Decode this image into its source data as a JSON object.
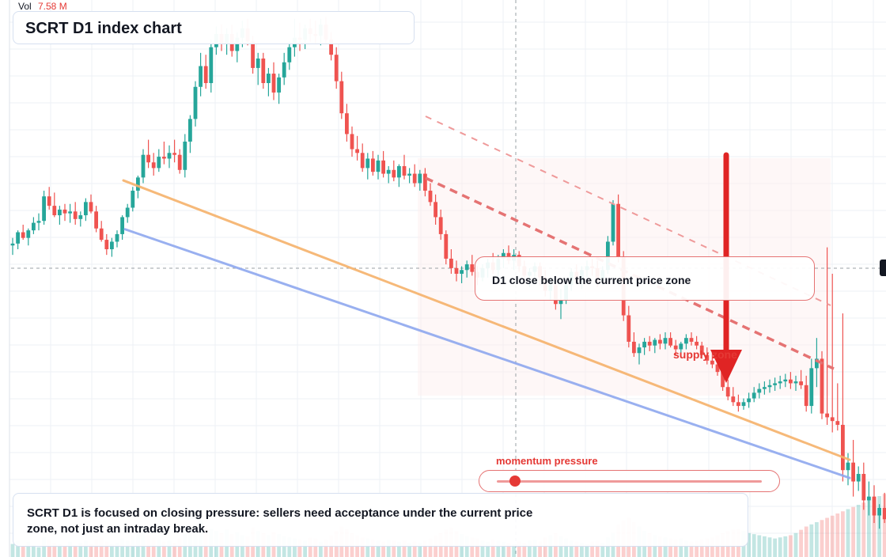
{
  "title": "SCRT D1 index chart",
  "volume": {
    "label": "Vol",
    "value": "7.58 M"
  },
  "callout": "D1 close below the current price zone",
  "supply_label": "supply zone",
  "momentum": {
    "label": "momentum pressure",
    "level": 0.07
  },
  "summary": "SCRT D1 is focused on closing pressure: sellers need acceptance under the current price zone, not just an intraday break.",
  "colors": {
    "up": "#26a69a",
    "down": "#ef5350",
    "accent": "#e53935",
    "trend_orange": "#f6b26b",
    "trend_blue": "#8fa8ef",
    "dashed_red": "#e57373"
  },
  "chart_data": {
    "type": "candlestick",
    "series": [
      {
        "name": "price",
        "candles": [
          [
            55,
            59,
            50,
            56
          ],
          [
            56,
            63,
            53,
            62
          ],
          [
            62,
            66,
            58,
            59
          ],
          [
            59,
            64,
            55,
            63
          ],
          [
            63,
            70,
            61,
            67
          ],
          [
            67,
            72,
            63,
            68
          ],
          [
            68,
            84,
            66,
            81
          ],
          [
            81,
            86,
            74,
            76
          ],
          [
            76,
            83,
            70,
            71
          ],
          [
            71,
            76,
            66,
            74
          ],
          [
            74,
            77,
            68,
            72
          ],
          [
            72,
            77,
            67,
            73
          ],
          [
            73,
            78,
            66,
            69
          ],
          [
            69,
            73,
            65,
            71
          ],
          [
            71,
            80,
            68,
            78
          ],
          [
            78,
            82,
            72,
            73
          ],
          [
            73,
            76,
            62,
            64
          ],
          [
            64,
            68,
            57,
            58
          ],
          [
            58,
            61,
            50,
            53
          ],
          [
            53,
            59,
            49,
            57
          ],
          [
            57,
            63,
            54,
            61
          ],
          [
            61,
            71,
            58,
            70
          ],
          [
            70,
            77,
            67,
            75
          ],
          [
            75,
            86,
            73,
            84
          ],
          [
            84,
            92,
            80,
            91
          ],
          [
            91,
            106,
            88,
            103
          ],
          [
            103,
            111,
            96,
            99
          ],
          [
            99,
            104,
            92,
            96
          ],
          [
            96,
            106,
            94,
            102
          ],
          [
            102,
            110,
            98,
            101
          ],
          [
            101,
            108,
            96,
            104
          ],
          [
            104,
            111,
            99,
            103
          ],
          [
            103,
            106,
            93,
            95
          ],
          [
            95,
            114,
            91,
            110
          ],
          [
            110,
            124,
            104,
            122
          ],
          [
            122,
            142,
            118,
            139
          ],
          [
            139,
            157,
            134,
            150
          ],
          [
            150,
            156,
            138,
            141
          ],
          [
            141,
            164,
            136,
            160
          ],
          [
            160,
            171,
            156,
            167
          ],
          [
            167,
            172,
            158,
            162
          ],
          [
            162,
            170,
            156,
            167
          ],
          [
            167,
            172,
            155,
            158
          ],
          [
            158,
            168,
            152,
            165
          ],
          [
            165,
            174,
            160,
            170
          ],
          [
            170,
            175,
            161,
            163
          ],
          [
            163,
            166,
            146,
            149
          ],
          [
            149,
            157,
            140,
            154
          ],
          [
            154,
            157,
            138,
            141
          ],
          [
            141,
            149,
            134,
            146
          ],
          [
            146,
            152,
            132,
            136
          ],
          [
            136,
            146,
            130,
            144
          ],
          [
            144,
            157,
            140,
            152
          ],
          [
            152,
            163,
            148,
            160
          ],
          [
            160,
            175,
            155,
            165
          ],
          [
            165,
            173,
            158,
            164
          ],
          [
            164,
            172,
            159,
            170
          ],
          [
            170,
            175,
            163,
            167
          ],
          [
            167,
            174,
            162,
            166
          ],
          [
            166,
            175,
            161,
            172
          ],
          [
            172,
            176,
            162,
            164
          ],
          [
            164,
            168,
            153,
            156
          ],
          [
            156,
            160,
            138,
            142
          ],
          [
            142,
            147,
            122,
            125
          ],
          [
            125,
            130,
            110,
            114
          ],
          [
            114,
            118,
            102,
            106
          ],
          [
            106,
            113,
            100,
            104
          ],
          [
            104,
            109,
            94,
            96
          ],
          [
            96,
            104,
            90,
            101
          ],
          [
            101,
            105,
            92,
            94
          ],
          [
            94,
            103,
            90,
            100
          ],
          [
            100,
            105,
            91,
            93
          ],
          [
            93,
            97,
            88,
            95
          ],
          [
            95,
            100,
            89,
            91
          ],
          [
            91,
            98,
            86,
            97
          ],
          [
            97,
            103,
            90,
            92
          ],
          [
            92,
            96,
            88,
            93
          ],
          [
            93,
            98,
            86,
            88
          ],
          [
            88,
            95,
            84,
            93
          ],
          [
            93,
            96,
            81,
            84
          ],
          [
            84,
            88,
            76,
            78
          ],
          [
            78,
            82,
            66,
            70
          ],
          [
            70,
            74,
            58,
            61
          ],
          [
            61,
            63,
            45,
            48
          ],
          [
            48,
            53,
            40,
            43
          ],
          [
            43,
            47,
            36,
            40
          ],
          [
            40,
            44,
            35,
            42
          ],
          [
            42,
            47,
            38,
            45
          ],
          [
            45,
            50,
            39,
            41
          ],
          [
            41,
            44,
            34,
            38
          ],
          [
            38,
            45,
            36,
            43
          ],
          [
            43,
            48,
            38,
            46
          ],
          [
            46,
            51,
            40,
            42
          ],
          [
            42,
            50,
            38,
            48
          ],
          [
            48,
            53,
            43,
            51
          ],
          [
            51,
            55,
            45,
            47
          ],
          [
            47,
            53,
            42,
            50
          ],
          [
            50,
            52,
            41,
            44
          ],
          [
            44,
            47,
            36,
            39
          ],
          [
            39,
            43,
            33,
            41
          ],
          [
            41,
            46,
            37,
            44
          ],
          [
            44,
            46,
            34,
            38
          ],
          [
            38,
            42,
            28,
            31
          ],
          [
            31,
            37,
            26,
            34
          ],
          [
            34,
            37,
            21,
            24
          ],
          [
            24,
            32,
            16,
            26
          ],
          [
            26,
            36,
            24,
            34
          ],
          [
            34,
            43,
            31,
            41
          ],
          [
            41,
            45,
            34,
            36
          ],
          [
            36,
            44,
            32,
            42
          ],
          [
            42,
            47,
            37,
            44
          ],
          [
            44,
            48,
            39,
            43
          ],
          [
            43,
            47,
            33,
            36
          ],
          [
            36,
            44,
            34,
            42
          ],
          [
            42,
            60,
            40,
            57
          ],
          [
            57,
            79,
            55,
            77
          ],
          [
            77,
            82,
            46,
            49
          ],
          [
            49,
            52,
            15,
            18
          ],
          [
            18,
            23,
            1,
            4
          ],
          [
            4,
            9,
            -4,
            -2
          ],
          [
            -2,
            3,
            -8,
            1
          ],
          [
            1,
            6,
            -3,
            4
          ],
          [
            4,
            7,
            -1,
            2
          ],
          [
            2,
            6,
            -2,
            5
          ],
          [
            5,
            8,
            0,
            3
          ],
          [
            3,
            9,
            0,
            6
          ],
          [
            6,
            9,
            1,
            2
          ],
          [
            2,
            5,
            -3,
            0
          ],
          [
            0,
            4,
            -4,
            3
          ],
          [
            3,
            8,
            0,
            6
          ],
          [
            6,
            9,
            2,
            4
          ],
          [
            4,
            7,
            0,
            2
          ],
          [
            2,
            4,
            -5,
            -3
          ],
          [
            -3,
            1,
            -8,
            -6
          ],
          [
            -6,
            -1,
            -10,
            -8
          ],
          [
            -8,
            -3,
            -14,
            -12
          ],
          [
            -12,
            -6,
            -22,
            -20
          ],
          [
            -20,
            -16,
            -27,
            -25
          ],
          [
            -25,
            -20,
            -30,
            -28
          ],
          [
            -28,
            -24,
            -33,
            -30
          ],
          [
            -30,
            -26,
            -32,
            -28
          ],
          [
            -28,
            -23,
            -31,
            -26
          ],
          [
            -26,
            -20,
            -28,
            -23
          ],
          [
            -23,
            -18,
            -26,
            -21
          ],
          [
            -21,
            -17,
            -24,
            -20
          ],
          [
            -20,
            -16,
            -23,
            -19
          ],
          [
            -19,
            -15,
            -22,
            -18
          ],
          [
            -18,
            -14,
            -21,
            -17
          ],
          [
            -17,
            -13,
            -20,
            -16
          ],
          [
            -16,
            -12,
            -21,
            -18
          ],
          [
            -18,
            -14,
            -22,
            -17
          ],
          [
            -17,
            -11,
            -21,
            -19
          ],
          [
            -19,
            -14,
            -33,
            -30
          ],
          [
            -30,
            -5,
            -34,
            -10
          ],
          [
            -10,
            6,
            -20,
            -5
          ],
          [
            -5,
            -1,
            -37,
            -34
          ],
          [
            -34,
            54,
            -40,
            -36
          ],
          [
            -36,
            40,
            -44,
            -38
          ],
          [
            -38,
            -18,
            -43,
            -40
          ],
          [
            -40,
            19,
            -70,
            -64
          ],
          [
            -64,
            -55,
            -72,
            -60
          ],
          [
            -60,
            -48,
            -78,
            -70
          ],
          [
            -70,
            -62,
            -75,
            -66
          ],
          [
            -66,
            -60,
            -85,
            -80
          ],
          [
            -80,
            -70,
            -88,
            -78
          ],
          [
            -78,
            -72,
            -92,
            -88
          ],
          [
            -88,
            -82,
            -95,
            -84
          ],
          [
            -84,
            -76,
            -92,
            -90
          ],
          [
            -90,
            -82,
            -94,
            -92
          ],
          [
            -92,
            -86,
            -96,
            -94
          ],
          [
            -94,
            -88,
            -98,
            -96
          ],
          [
            -96,
            -90,
            -100,
            -98
          ],
          [
            -98,
            -92,
            -102,
            -100
          ],
          [
            -100,
            -75,
            -104,
            -80
          ]
        ]
      }
    ],
    "volume": [
      12,
      15,
      10,
      14,
      11,
      9,
      18,
      16,
      13,
      12,
      10,
      14,
      11,
      13,
      15,
      12,
      16,
      18,
      14,
      12,
      13,
      17,
      15,
      19,
      22,
      28,
      20,
      18,
      16,
      14,
      15,
      13,
      17,
      21,
      26,
      30,
      34,
      29,
      26,
      24,
      22,
      25,
      21,
      23,
      20,
      19,
      27,
      24,
      22,
      20,
      23,
      21,
      19,
      18,
      17,
      16,
      15,
      18,
      17,
      14,
      16,
      20,
      24,
      28,
      26,
      22,
      20,
      18,
      17,
      16,
      15,
      14,
      16,
      15,
      14,
      15,
      13,
      14,
      13,
      15,
      17,
      20,
      22,
      25,
      27,
      24,
      21,
      19,
      18,
      17,
      15,
      14,
      16,
      15,
      14,
      13,
      12,
      14,
      13,
      15,
      16,
      14,
      18,
      20,
      22,
      19,
      17,
      15,
      14,
      13,
      12,
      14,
      15,
      13,
      18,
      22,
      30,
      34,
      36,
      32,
      28,
      24,
      22,
      20,
      19,
      18,
      17,
      16,
      17,
      15,
      14,
      15,
      16,
      17,
      18,
      20,
      22,
      24,
      25,
      26,
      24,
      22,
      21,
      20,
      19,
      18,
      17,
      18,
      19,
      20,
      22,
      25,
      28,
      30,
      32,
      34,
      36,
      38,
      40,
      42,
      44,
      46,
      48,
      50,
      52,
      54,
      56,
      58,
      60,
      62,
      64,
      66,
      68,
      70,
      72,
      74,
      76,
      78,
      80
    ],
    "trendlines": [
      {
        "name": "",
        "from": [
          0,
          112
        ],
        "to": [
          157,
          -55
        ]
      },
      {
        "name": "",
        "from": [
          0,
          84
        ],
        "to": [
          157,
          -65
        ]
      }
    ],
    "y_range": [
      -110,
      185
    ]
  }
}
